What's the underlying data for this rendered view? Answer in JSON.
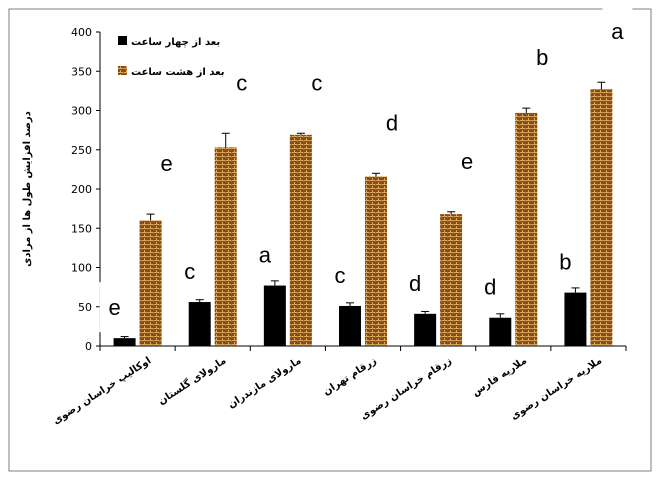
{
  "chart_data": {
    "type": "bar",
    "title": "",
    "xlabel": "",
    "ylabel": "درصد افزایش طول ها از مرادی",
    "ylim": [
      0,
      400
    ],
    "yticks": [
      0,
      50,
      100,
      150,
      200,
      250,
      300,
      350,
      400
    ],
    "grid": false,
    "legend_position": "top-left",
    "categories": [
      "اوکالیپ خراسان رضوی",
      "مارولای گلستان",
      "مارولای مازندران",
      "زرقام تهران",
      "زرقام خراسان رضوی",
      "ملاریه فارس",
      "ملاریه خراسان رضوی"
    ],
    "series": [
      {
        "name": "بعد از چهار ساعت",
        "color": "#000000",
        "values": [
          10,
          56,
          77,
          51,
          41,
          36,
          68
        ],
        "errors": [
          2,
          3,
          6,
          4,
          3,
          5,
          6
        ],
        "letters": [
          "e",
          "c",
          "a",
          "c",
          "d",
          "d",
          "b"
        ]
      },
      {
        "name": "بعد از هشت ساعت",
        "color": "#8b4a1c",
        "values": [
          160,
          253,
          269,
          216,
          168,
          297,
          327
        ],
        "errors": [
          8,
          18,
          2,
          4,
          3,
          6,
          9
        ],
        "letters": [
          "e",
          "c",
          "c",
          "d",
          "e",
          "b",
          "a"
        ]
      }
    ]
  }
}
